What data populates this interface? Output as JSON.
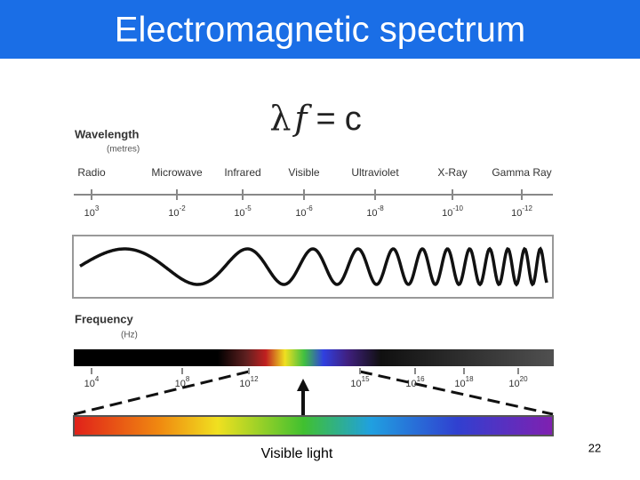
{
  "header": {
    "title": "Electromagnetic spectrum"
  },
  "equation": [
    "λ",
    "f",
    "=",
    "c"
  ],
  "wavelength": {
    "label": "Wavelength",
    "unit": "(metres)",
    "bands": [
      "Radio",
      "Microwave",
      "Infrared",
      "Visible",
      "Ultraviolet",
      "X-Ray",
      "Gamma Ray"
    ],
    "ticks": [
      {
        "base": "10",
        "exp": "3"
      },
      {
        "base": "10",
        "exp": "-2"
      },
      {
        "base": "10",
        "exp": "-5"
      },
      {
        "base": "10",
        "exp": "-6"
      },
      {
        "base": "10",
        "exp": "-8"
      },
      {
        "base": "10",
        "exp": "-10"
      },
      {
        "base": "10",
        "exp": "-12"
      }
    ]
  },
  "frequency": {
    "label": "Frequency",
    "unit": "(Hz)",
    "ticks": [
      {
        "base": "10",
        "exp": "4"
      },
      {
        "base": "10",
        "exp": "8"
      },
      {
        "base": "10",
        "exp": "12"
      },
      {
        "base": "10",
        "exp": "15"
      },
      {
        "base": "10",
        "exp": "16"
      },
      {
        "base": "10",
        "exp": "18"
      },
      {
        "base": "10",
        "exp": "20"
      }
    ]
  },
  "caption": "Visible light",
  "page_number": "22"
}
